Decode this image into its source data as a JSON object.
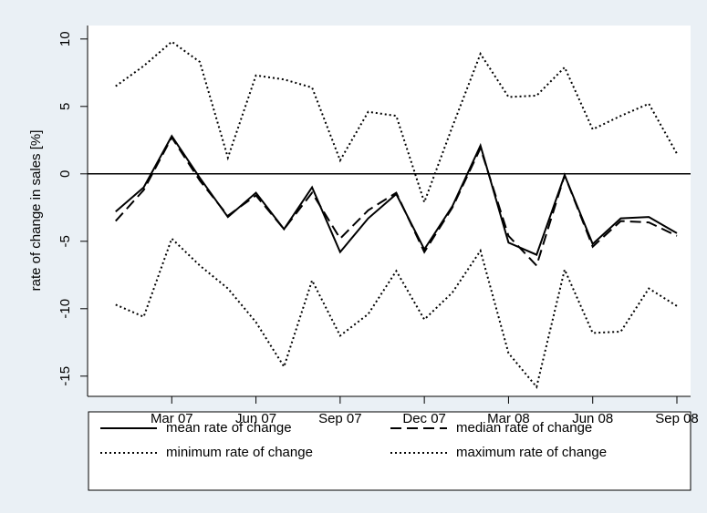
{
  "chart_data": {
    "type": "line",
    "y_label": "rate of change in sales [%]",
    "x": [
      "2007-01",
      "2007-02",
      "2007-03",
      "2007-04",
      "2007-05",
      "2007-06",
      "2007-07",
      "2007-08",
      "2007-09",
      "2007-10",
      "2007-11",
      "2007-12",
      "2008-01",
      "2008-02",
      "2008-03",
      "2008-04",
      "2008-05",
      "2008-06",
      "2008-07",
      "2008-08",
      "2008-09"
    ],
    "series": [
      {
        "name": "mean rate of change",
        "color": "#000000",
        "dash": "solid",
        "values": [
          -2.8,
          -1.0,
          2.8,
          -0.3,
          -3.2,
          -1.4,
          -4.1,
          -1.0,
          -5.8,
          -3.3,
          -1.5,
          -5.6,
          -2.4,
          2.1,
          -5.1,
          -6.0,
          -0.1,
          -5.2,
          -3.3,
          -3.2,
          -4.4
        ]
      },
      {
        "name": "median rate of change",
        "color": "#000000",
        "dash": "dash",
        "values": [
          -3.5,
          -1.2,
          2.7,
          -0.5,
          -3.1,
          -1.6,
          -4.1,
          -1.4,
          -4.8,
          -2.7,
          -1.4,
          -5.8,
          -2.5,
          1.9,
          -4.6,
          -6.8,
          -0.1,
          -5.4,
          -3.5,
          -3.6,
          -4.6
        ]
      },
      {
        "name": "minimum rate of change",
        "color": "#000000",
        "dash": "dot",
        "values": [
          -9.7,
          -10.6,
          -4.8,
          -6.8,
          -8.5,
          -11.0,
          -14.3,
          -7.9,
          -12.0,
          -10.4,
          -7.2,
          -10.8,
          -8.8,
          -5.7,
          -13.3,
          -15.8,
          -7.1,
          -11.8,
          -11.7,
          -8.5,
          -9.8
        ]
      },
      {
        "name": "maximum rate of change",
        "color": "#000000",
        "dash": "dot",
        "values": [
          6.5,
          8.0,
          9.8,
          8.3,
          1.2,
          7.3,
          7.0,
          6.4,
          1.0,
          4.6,
          4.3,
          -2.1,
          3.5,
          8.9,
          5.7,
          5.8,
          7.9,
          3.3,
          4.3,
          5.2,
          1.5
        ]
      }
    ],
    "xlim": [
      "2006-12",
      "2008-09"
    ],
    "xticks": [
      {
        "value": "2007-03",
        "label": "Mar 07"
      },
      {
        "value": "2007-06",
        "label": "Jun 07"
      },
      {
        "value": "2007-09",
        "label": "Sep 07"
      },
      {
        "value": "2007-12",
        "label": "Dec 07"
      },
      {
        "value": "2008-03",
        "label": "Mar 08"
      },
      {
        "value": "2008-06",
        "label": "Jun 08"
      },
      {
        "value": "2008-09",
        "label": "Sep 08"
      }
    ],
    "ylim": [
      -16.5,
      11
    ],
    "yticks": [
      -15,
      -10,
      -5,
      0,
      5,
      10
    ],
    "hline": 0,
    "legend_position": "bottom"
  }
}
